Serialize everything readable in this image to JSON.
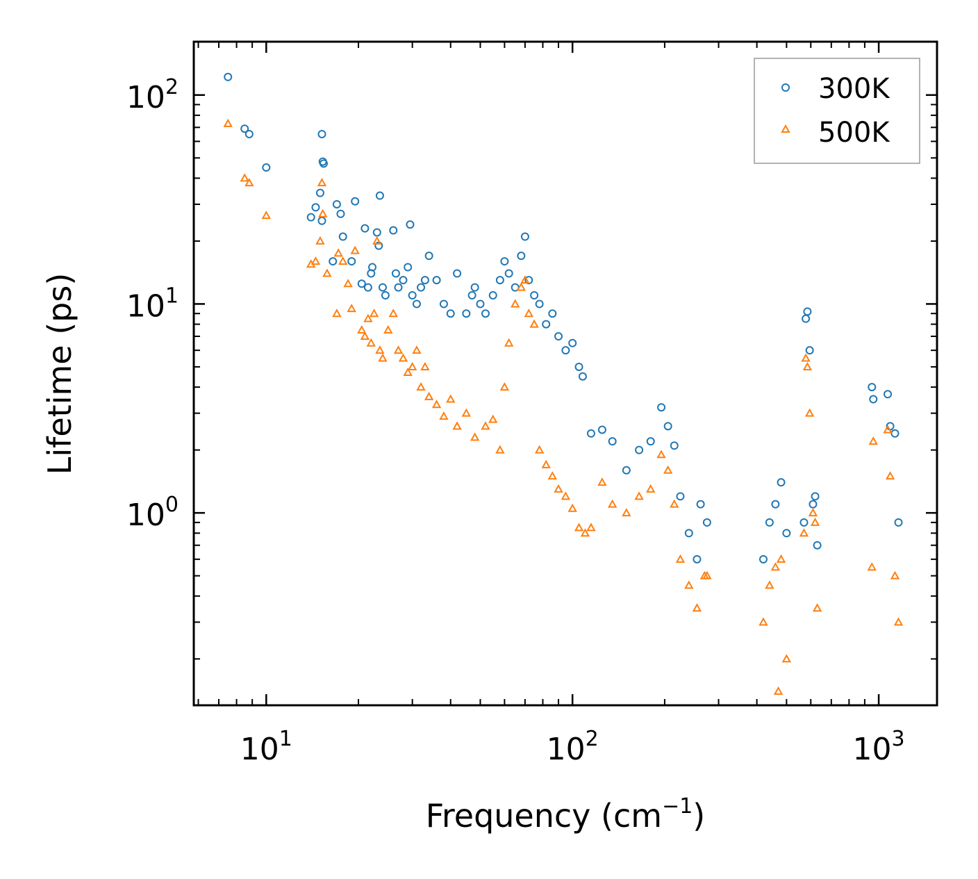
{
  "chart_data": {
    "type": "scatter",
    "xscale": "log",
    "yscale": "log",
    "xlim": [
      5.8,
      1550
    ],
    "ylim": [
      0.12,
      180
    ],
    "xlabel": {
      "text": "Frequency (cm",
      "sup": "−1",
      "suffix": ")"
    },
    "ylabel": "Lifetime (ps)",
    "xticks": [
      {
        "value": 10,
        "base": "10",
        "exp": "1"
      },
      {
        "value": 100,
        "base": "10",
        "exp": "2"
      },
      {
        "value": 1000,
        "base": "10",
        "exp": "3"
      }
    ],
    "yticks": [
      {
        "value": 1,
        "base": "10",
        "exp": "0"
      },
      {
        "value": 10,
        "base": "10",
        "exp": "1"
      },
      {
        "value": 100,
        "base": "10",
        "exp": "2"
      }
    ],
    "legend_position": "top-right",
    "series": [
      {
        "name": "300K",
        "marker": "circle",
        "color": "#1f77b4",
        "points": [
          [
            7.5,
            122
          ],
          [
            8.5,
            69
          ],
          [
            8.8,
            65
          ],
          [
            10,
            45
          ],
          [
            14,
            26
          ],
          [
            14.5,
            29
          ],
          [
            15,
            34
          ],
          [
            15.2,
            65
          ],
          [
            15.3,
            48
          ],
          [
            15.4,
            47
          ],
          [
            15.2,
            25
          ],
          [
            16.5,
            16
          ],
          [
            17,
            30
          ],
          [
            17.5,
            27
          ],
          [
            17.8,
            21
          ],
          [
            19,
            16
          ],
          [
            19.5,
            31
          ],
          [
            20.5,
            12.5
          ],
          [
            21,
            23
          ],
          [
            21.5,
            12
          ],
          [
            22,
            14
          ],
          [
            22.2,
            15
          ],
          [
            23,
            22
          ],
          [
            23.3,
            19
          ],
          [
            23.5,
            33
          ],
          [
            24,
            12
          ],
          [
            24.5,
            11
          ],
          [
            26,
            22.5
          ],
          [
            26.5,
            14
          ],
          [
            27,
            12
          ],
          [
            28,
            13
          ],
          [
            29,
            15
          ],
          [
            29.5,
            24
          ],
          [
            30,
            11
          ],
          [
            31,
            10
          ],
          [
            32,
            12
          ],
          [
            33,
            13
          ],
          [
            34,
            17
          ],
          [
            36,
            13
          ],
          [
            38,
            10
          ],
          [
            40,
            9
          ],
          [
            42,
            14
          ],
          [
            45,
            9
          ],
          [
            47,
            11
          ],
          [
            48,
            12
          ],
          [
            50,
            10
          ],
          [
            52,
            9
          ],
          [
            55,
            11
          ],
          [
            58,
            13
          ],
          [
            60,
            16
          ],
          [
            62,
            14
          ],
          [
            65,
            12
          ],
          [
            68,
            17
          ],
          [
            70,
            21
          ],
          [
            72,
            13
          ],
          [
            75,
            11
          ],
          [
            78,
            10
          ],
          [
            82,
            8
          ],
          [
            86,
            9
          ],
          [
            90,
            7
          ],
          [
            95,
            6
          ],
          [
            100,
            6.5
          ],
          [
            105,
            5
          ],
          [
            108,
            4.5
          ],
          [
            115,
            2.4
          ],
          [
            125,
            2.5
          ],
          [
            135,
            2.2
          ],
          [
            150,
            1.6
          ],
          [
            165,
            2
          ],
          [
            180,
            2.2
          ],
          [
            195,
            3.2
          ],
          [
            205,
            2.6
          ],
          [
            215,
            2.1
          ],
          [
            225,
            1.2
          ],
          [
            240,
            0.8
          ],
          [
            255,
            0.6
          ],
          [
            262,
            1.1
          ],
          [
            275,
            0.9
          ],
          [
            420,
            0.6
          ],
          [
            440,
            0.9
          ],
          [
            460,
            1.1
          ],
          [
            480,
            1.4
          ],
          [
            500,
            0.8
          ],
          [
            570,
            0.9
          ],
          [
            578,
            8.5
          ],
          [
            585,
            9.2
          ],
          [
            595,
            6
          ],
          [
            610,
            1.1
          ],
          [
            620,
            1.2
          ],
          [
            630,
            0.7
          ],
          [
            950,
            4
          ],
          [
            960,
            3.5
          ],
          [
            1070,
            3.7
          ],
          [
            1090,
            2.6
          ],
          [
            1130,
            2.4
          ],
          [
            1160,
            0.9
          ]
        ]
      },
      {
        "name": "500K",
        "marker": "triangle",
        "color": "#ff7f0e",
        "points": [
          [
            7.5,
            73
          ],
          [
            8.5,
            40
          ],
          [
            8.8,
            38
          ],
          [
            10,
            26.5
          ],
          [
            14,
            15.5
          ],
          [
            14.5,
            16
          ],
          [
            15,
            20
          ],
          [
            15.2,
            38
          ],
          [
            15.3,
            27
          ],
          [
            15.8,
            14
          ],
          [
            17,
            9
          ],
          [
            17.2,
            17.5
          ],
          [
            17.8,
            16
          ],
          [
            18.5,
            12.5
          ],
          [
            19,
            9.5
          ],
          [
            19.5,
            18
          ],
          [
            20.5,
            7.5
          ],
          [
            21,
            7
          ],
          [
            21.5,
            8.5
          ],
          [
            22,
            6.5
          ],
          [
            22.5,
            9
          ],
          [
            23,
            20
          ],
          [
            23.5,
            6
          ],
          [
            24,
            5.5
          ],
          [
            25,
            7.5
          ],
          [
            26,
            9
          ],
          [
            27,
            6
          ],
          [
            28,
            5.5
          ],
          [
            29,
            4.7
          ],
          [
            30,
            5
          ],
          [
            31,
            6
          ],
          [
            32,
            4
          ],
          [
            33,
            5
          ],
          [
            34,
            3.6
          ],
          [
            36,
            3.3
          ],
          [
            38,
            2.9
          ],
          [
            40,
            3.5
          ],
          [
            42,
            2.6
          ],
          [
            45,
            3
          ],
          [
            48,
            2.3
          ],
          [
            52,
            2.6
          ],
          [
            55,
            2.8
          ],
          [
            58,
            2
          ],
          [
            60,
            4
          ],
          [
            62,
            6.5
          ],
          [
            65,
            10
          ],
          [
            68,
            12
          ],
          [
            70,
            13
          ],
          [
            72,
            9
          ],
          [
            75,
            8
          ],
          [
            78,
            2
          ],
          [
            82,
            1.7
          ],
          [
            86,
            1.5
          ],
          [
            90,
            1.3
          ],
          [
            95,
            1.2
          ],
          [
            100,
            1.05
          ],
          [
            105,
            0.85
          ],
          [
            110,
            0.8
          ],
          [
            115,
            0.85
          ],
          [
            125,
            1.4
          ],
          [
            135,
            1.1
          ],
          [
            150,
            1
          ],
          [
            165,
            1.2
          ],
          [
            180,
            1.3
          ],
          [
            195,
            1.9
          ],
          [
            205,
            1.6
          ],
          [
            215,
            1.1
          ],
          [
            225,
            0.6
          ],
          [
            240,
            0.45
          ],
          [
            255,
            0.35
          ],
          [
            270,
            0.5
          ],
          [
            275,
            0.5
          ],
          [
            420,
            0.3
          ],
          [
            440,
            0.45
          ],
          [
            460,
            0.55
          ],
          [
            470,
            0.14
          ],
          [
            480,
            0.6
          ],
          [
            500,
            0.2
          ],
          [
            570,
            0.8
          ],
          [
            578,
            5.5
          ],
          [
            585,
            5
          ],
          [
            595,
            3
          ],
          [
            610,
            1
          ],
          [
            620,
            0.9
          ],
          [
            630,
            0.35
          ],
          [
            950,
            0.55
          ],
          [
            960,
            2.2
          ],
          [
            1070,
            2.5
          ],
          [
            1090,
            1.5
          ],
          [
            1130,
            0.5
          ],
          [
            1160,
            0.3
          ]
        ]
      }
    ]
  }
}
